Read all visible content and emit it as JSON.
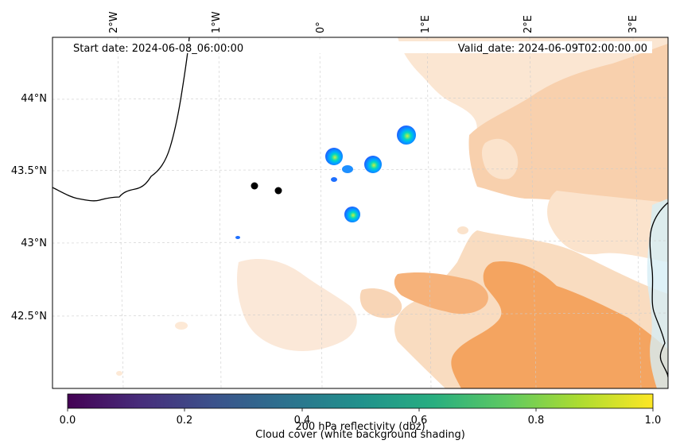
{
  "map": {
    "start_label": "Start date: 2024-06-08_06:00:00",
    "valid_label": "Valid_date: 2024-06-09T02:00:00.00",
    "lon_ticks": [
      "2°W",
      "1°W",
      "0°",
      "1°E",
      "2°E",
      "3°E"
    ],
    "lat_ticks": [
      "44°N",
      "43.5°N",
      "43°N",
      "42.5°N"
    ],
    "colors": {
      "cloud_light": "#fbe3cc",
      "cloud_mid": "#f7c9a0",
      "cloud_dense": "#f4a460",
      "sea_tint": "#d6edf5",
      "coast": "#000000",
      "grid": "#cccccc",
      "echo_outer": "#1e6fff",
      "echo_mid": "#00c8ff",
      "echo_core": "#b4f050"
    }
  },
  "colorbar": {
    "colormap": "viridis",
    "min": 0.0,
    "max": 1.0,
    "ticks": [
      "0.0",
      "0.2",
      "0.4",
      "0.6",
      "0.8",
      "1.0"
    ],
    "label_reflectivity": "200 hPa reflectivity (dbz)",
    "label_cloud": "Cloud cover (white background shading)"
  }
}
